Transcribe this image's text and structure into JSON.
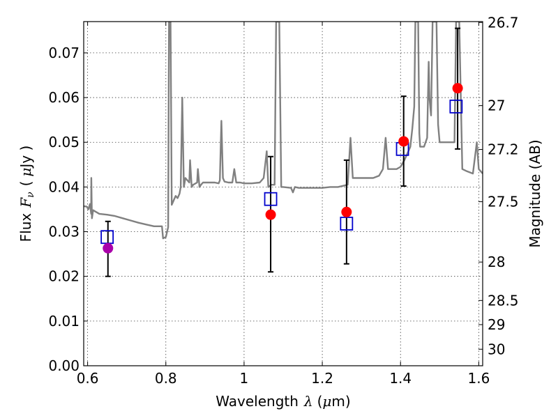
{
  "chart_data": {
    "type": "scatter",
    "title": "",
    "xlabel_text": "Wavelength",
    "xlabel_symbol": "λ",
    "xlabel_unit_open": "(",
    "xlabel_unit_mu": "μ",
    "xlabel_unit_rest": "m)",
    "ylabel_text": "Flux",
    "ylabel_symbol": "F",
    "ylabel_subscript": "ν",
    "ylabel_unit_open": "(",
    "ylabel_unit_mu": "μ",
    "ylabel_unit_rest": "Jy )",
    "y2label": "Magnitude (AB)",
    "xlim": [
      0.59,
      1.61
    ],
    "ylim": [
      0.0,
      0.077
    ],
    "grid": true,
    "x_ticks": [
      {
        "value": 0.6,
        "label": "0.6"
      },
      {
        "value": 0.8,
        "label": "0.8"
      },
      {
        "value": 1.0,
        "label": "1"
      },
      {
        "value": 1.2,
        "label": "1.2"
      },
      {
        "value": 1.4,
        "label": "1.4"
      },
      {
        "value": 1.6,
        "label": "1.6"
      }
    ],
    "y_ticks": [
      {
        "value": 0.0,
        "label": "0.00"
      },
      {
        "value": 0.01,
        "label": "0.01"
      },
      {
        "value": 0.02,
        "label": "0.02"
      },
      {
        "value": 0.03,
        "label": "0.03"
      },
      {
        "value": 0.04,
        "label": "0.04"
      },
      {
        "value": 0.05,
        "label": "0.05"
      },
      {
        "value": 0.06,
        "label": "0.06"
      },
      {
        "value": 0.07,
        "label": "0.07"
      }
    ],
    "y2_ticks": [
      {
        "value": 26.7,
        "label": "26.7"
      },
      {
        "value": 27.0,
        "label": "27"
      },
      {
        "value": 27.2,
        "label": "27.2"
      },
      {
        "value": 27.5,
        "label": "27.5"
      },
      {
        "value": 28.0,
        "label": "28"
      },
      {
        "value": 28.5,
        "label": "28.5"
      },
      {
        "value": 29.0,
        "label": "29"
      },
      {
        "value": 30.0,
        "label": "30"
      }
    ],
    "y2_flux_at_tick": [
      0.0768,
      0.0582,
      0.0484,
      0.0367,
      0.0232,
      0.0146,
      0.0092,
      0.0037
    ],
    "model_spectrum": {
      "color": "#808080",
      "points": [
        [
          0.59,
          0.0357
        ],
        [
          0.598,
          0.0356
        ],
        [
          0.602,
          0.035
        ],
        [
          0.606,
          0.0362
        ],
        [
          0.609,
          0.034
        ],
        [
          0.6095,
          0.042
        ],
        [
          0.611,
          0.033
        ],
        [
          0.614,
          0.0348
        ],
        [
          0.62,
          0.0345
        ],
        [
          0.63,
          0.034
        ],
        [
          0.65,
          0.0338
        ],
        [
          0.67,
          0.0335
        ],
        [
          0.69,
          0.033
        ],
        [
          0.71,
          0.0325
        ],
        [
          0.73,
          0.032
        ],
        [
          0.75,
          0.0316
        ],
        [
          0.77,
          0.0312
        ],
        [
          0.79,
          0.0312
        ],
        [
          0.793,
          0.0285
        ],
        [
          0.8,
          0.0288
        ],
        [
          0.806,
          0.031
        ],
        [
          0.808,
          0.077
        ],
        [
          0.812,
          0.077
        ],
        [
          0.815,
          0.036
        ],
        [
          0.82,
          0.037
        ],
        [
          0.825,
          0.038
        ],
        [
          0.83,
          0.0375
        ],
        [
          0.835,
          0.0385
        ],
        [
          0.838,
          0.04
        ],
        [
          0.842,
          0.06
        ],
        [
          0.846,
          0.04
        ],
        [
          0.85,
          0.042
        ],
        [
          0.86,
          0.041
        ],
        [
          0.862,
          0.046
        ],
        [
          0.866,
          0.04
        ],
        [
          0.87,
          0.0405
        ],
        [
          0.88,
          0.041
        ],
        [
          0.882,
          0.044
        ],
        [
          0.886,
          0.04
        ],
        [
          0.89,
          0.0405
        ],
        [
          0.895,
          0.041
        ],
        [
          0.905,
          0.041
        ],
        [
          0.915,
          0.041
        ],
        [
          0.925,
          0.041
        ],
        [
          0.935,
          0.0408
        ],
        [
          0.938,
          0.0415
        ],
        [
          0.942,
          0.0548
        ],
        [
          0.946,
          0.042
        ],
        [
          0.95,
          0.0412
        ],
        [
          0.96,
          0.041
        ],
        [
          0.97,
          0.041
        ],
        [
          0.975,
          0.044
        ],
        [
          0.98,
          0.041
        ],
        [
          0.99,
          0.041
        ],
        [
          1.0,
          0.0408
        ],
        [
          1.02,
          0.0408
        ],
        [
          1.04,
          0.041
        ],
        [
          1.05,
          0.042
        ],
        [
          1.058,
          0.048
        ],
        [
          1.062,
          0.04
        ],
        [
          1.07,
          0.0405
        ],
        [
          1.078,
          0.0405
        ],
        [
          1.082,
          0.077
        ],
        [
          1.09,
          0.077
        ],
        [
          1.095,
          0.04
        ],
        [
          1.1,
          0.04
        ],
        [
          1.12,
          0.0398
        ],
        [
          1.125,
          0.0388
        ],
        [
          1.13,
          0.04
        ],
        [
          1.14,
          0.0398
        ],
        [
          1.16,
          0.0398
        ],
        [
          1.18,
          0.0398
        ],
        [
          1.2,
          0.0398
        ],
        [
          1.22,
          0.04
        ],
        [
          1.24,
          0.04
        ],
        [
          1.265,
          0.0405
        ],
        [
          1.272,
          0.051
        ],
        [
          1.278,
          0.042
        ],
        [
          1.29,
          0.042
        ],
        [
          1.31,
          0.042
        ],
        [
          1.33,
          0.042
        ],
        [
          1.345,
          0.0425
        ],
        [
          1.355,
          0.044
        ],
        [
          1.362,
          0.051
        ],
        [
          1.368,
          0.044
        ],
        [
          1.38,
          0.044
        ],
        [
          1.39,
          0.044
        ],
        [
          1.4,
          0.0445
        ],
        [
          1.41,
          0.046
        ],
        [
          1.415,
          0.047
        ],
        [
          1.42,
          0.048
        ],
        [
          1.425,
          0.049
        ],
        [
          1.43,
          0.053
        ],
        [
          1.435,
          0.058
        ],
        [
          1.438,
          0.077
        ],
        [
          1.445,
          0.077
        ],
        [
          1.448,
          0.052
        ],
        [
          1.45,
          0.049
        ],
        [
          1.46,
          0.049
        ],
        [
          1.468,
          0.051
        ],
        [
          1.472,
          0.068
        ],
        [
          1.474,
          0.06
        ],
        [
          1.478,
          0.056
        ],
        [
          1.482,
          0.077
        ],
        [
          1.492,
          0.077
        ],
        [
          1.496,
          0.054
        ],
        [
          1.5,
          0.05
        ],
        [
          1.51,
          0.05
        ],
        [
          1.52,
          0.05
        ],
        [
          1.53,
          0.05
        ],
        [
          1.538,
          0.05
        ],
        [
          1.542,
          0.077
        ],
        [
          1.55,
          0.077
        ],
        [
          1.555,
          0.056
        ],
        [
          1.558,
          0.044
        ],
        [
          1.57,
          0.0435
        ],
        [
          1.585,
          0.043
        ],
        [
          1.595,
          0.05
        ],
        [
          1.6,
          0.044
        ],
        [
          1.61,
          0.043
        ]
      ]
    },
    "error_bars": {
      "color": "#000000",
      "points": [
        {
          "x": 0.652,
          "low": 0.02,
          "high": 0.0323
        },
        {
          "x": 1.068,
          "low": 0.021,
          "high": 0.0468
        },
        {
          "x": 1.262,
          "low": 0.0228,
          "high": 0.046
        },
        {
          "x": 1.408,
          "low": 0.0402,
          "high": 0.0603
        },
        {
          "x": 1.546,
          "low": 0.0485,
          "high": 0.0755
        }
      ]
    },
    "model_photometry": {
      "marker": "open-square",
      "color": "#0000cc",
      "points": [
        [
          0.65,
          0.0288
        ],
        [
          1.068,
          0.0373
        ],
        [
          1.262,
          0.0318
        ],
        [
          1.405,
          0.0485
        ],
        [
          1.542,
          0.058
        ]
      ]
    },
    "observed_photometry": {
      "marker": "filled-circle",
      "color": "#ff0000",
      "points": [
        [
          1.068,
          0.0338
        ],
        [
          1.262,
          0.0344
        ],
        [
          1.408,
          0.0502
        ],
        [
          1.546,
          0.0621
        ]
      ]
    },
    "observed_photometry_alt": {
      "marker": "filled-circle",
      "color": "#aa00aa",
      "points": [
        [
          0.652,
          0.0263
        ]
      ]
    }
  }
}
